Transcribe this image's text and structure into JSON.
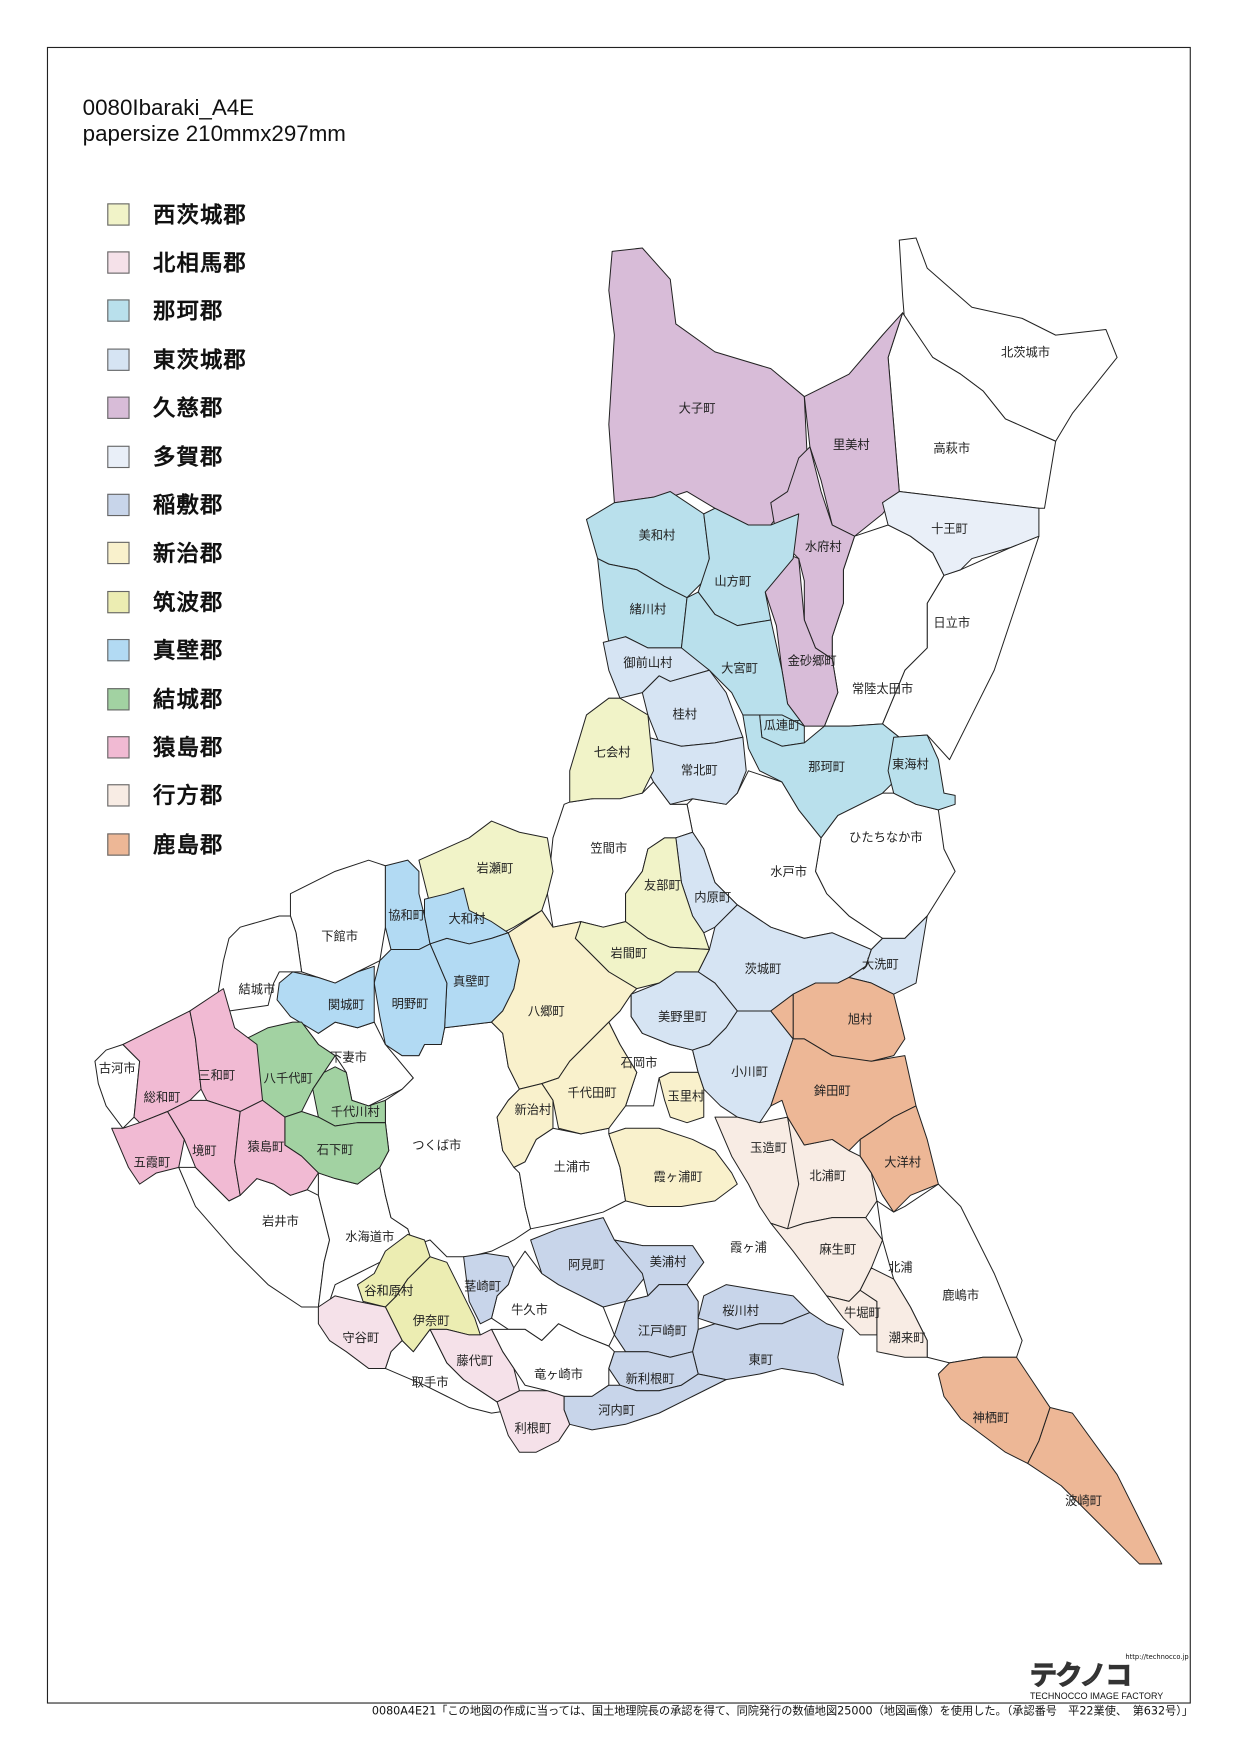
{
  "title": {
    "line1": "0080Ibaraki_A4E",
    "line2": "papersize 210mmx297mm"
  },
  "legend": [
    {
      "label": "西茨城郡",
      "color": "#f1f3c8"
    },
    {
      "label": "北相馬郡",
      "color": "#f5e1e9"
    },
    {
      "label": "那珂郡",
      "color": "#b9e0ec"
    },
    {
      "label": "東茨城郡",
      "color": "#d6e4f3"
    },
    {
      "label": "久慈郡",
      "color": "#d8bcd8"
    },
    {
      "label": "多賀郡",
      "color": "#e9eff8"
    },
    {
      "label": "稲敷郡",
      "color": "#c8d5ea"
    },
    {
      "label": "新治郡",
      "color": "#f9f1cc"
    },
    {
      "label": "筑波郡",
      "color": "#ecedb2"
    },
    {
      "label": "真壁郡",
      "color": "#b2daf3"
    },
    {
      "label": "結城郡",
      "color": "#a2d2a2"
    },
    {
      "label": "猿島郡",
      "color": "#f1bad3"
    },
    {
      "label": "行方郡",
      "color": "#f8ece4"
    },
    {
      "label": "鹿島郡",
      "color": "#edb796"
    }
  ],
  "map": {
    "city_color": "#ffffff",
    "municipalities": [
      {
        "name": "北茨城市",
        "district": ""
      },
      {
        "name": "高萩市",
        "district": ""
      },
      {
        "name": "日立市",
        "district": ""
      },
      {
        "name": "常陸太田市",
        "district": ""
      },
      {
        "name": "ひたちなか市",
        "district": ""
      },
      {
        "name": "水戸市",
        "district": ""
      },
      {
        "name": "笠間市",
        "district": ""
      },
      {
        "name": "下館市",
        "district": ""
      },
      {
        "name": "結城市",
        "district": ""
      },
      {
        "name": "下妻市",
        "district": ""
      },
      {
        "name": "古河市",
        "district": ""
      },
      {
        "name": "岩井市",
        "district": ""
      },
      {
        "name": "水海道市",
        "district": ""
      },
      {
        "name": "つくば市",
        "district": ""
      },
      {
        "name": "石岡市",
        "district": ""
      },
      {
        "name": "土浦市",
        "district": ""
      },
      {
        "name": "牛久市",
        "district": ""
      },
      {
        "name": "竜ヶ崎市",
        "district": ""
      },
      {
        "name": "取手市",
        "district": ""
      },
      {
        "name": "鹿嶋市",
        "district": ""
      },
      {
        "name": "大子町",
        "district": "久慈郡"
      },
      {
        "name": "里美村",
        "district": "久慈郡"
      },
      {
        "name": "水府村",
        "district": "久慈郡"
      },
      {
        "name": "金砂郷町",
        "district": "久慈郡"
      },
      {
        "name": "美和村",
        "district": "那珂郡"
      },
      {
        "name": "山方町",
        "district": "那珂郡"
      },
      {
        "name": "緒川村",
        "district": "那珂郡"
      },
      {
        "name": "大宮町",
        "district": "那珂郡"
      },
      {
        "name": "瓜連町",
        "district": "那珂郡"
      },
      {
        "name": "那珂町",
        "district": "那珂郡"
      },
      {
        "name": "東海村",
        "district": "那珂郡"
      },
      {
        "name": "十王町",
        "district": "多賀郡"
      },
      {
        "name": "御前山村",
        "district": "東茨城郡"
      },
      {
        "name": "桂村",
        "district": "東茨城郡"
      },
      {
        "name": "常北町",
        "district": "東茨城郡"
      },
      {
        "name": "内原町",
        "district": "東茨城郡"
      },
      {
        "name": "茨城町",
        "district": "東茨城郡"
      },
      {
        "name": "大洗町",
        "district": "東茨城郡"
      },
      {
        "name": "美野里町",
        "district": "東茨城郡"
      },
      {
        "name": "小川町",
        "district": "東茨城郡"
      },
      {
        "name": "七会村",
        "district": "西茨城郡"
      },
      {
        "name": "岩瀬町",
        "district": "西茨城郡"
      },
      {
        "name": "友部町",
        "district": "西茨城郡"
      },
      {
        "name": "岩間町",
        "district": "西茨城郡"
      },
      {
        "name": "協和町",
        "district": "真壁郡"
      },
      {
        "name": "大和村",
        "district": "真壁郡"
      },
      {
        "name": "真壁町",
        "district": "真壁郡"
      },
      {
        "name": "明野町",
        "district": "真壁郡"
      },
      {
        "name": "関城町",
        "district": "真壁郡"
      },
      {
        "name": "八郷町",
        "district": "新治郡"
      },
      {
        "name": "千代田町",
        "district": "新治郡"
      },
      {
        "name": "新治村",
        "district": "新治郡"
      },
      {
        "name": "玉里村",
        "district": "新治郡"
      },
      {
        "name": "霞ヶ浦町",
        "district": "新治郡"
      },
      {
        "name": "八千代町",
        "district": "結城郡"
      },
      {
        "name": "千代川村",
        "district": "結城郡"
      },
      {
        "name": "石下町",
        "district": "結城郡"
      },
      {
        "name": "総和町",
        "district": "猿島郡"
      },
      {
        "name": "三和町",
        "district": "猿島郡"
      },
      {
        "name": "五霞町",
        "district": "猿島郡"
      },
      {
        "name": "境町",
        "district": "猿島郡"
      },
      {
        "name": "猿島町",
        "district": "猿島郡"
      },
      {
        "name": "谷和原村",
        "district": "筑波郡"
      },
      {
        "name": "伊奈町",
        "district": "筑波郡"
      },
      {
        "name": "守谷町",
        "district": "北相馬郡"
      },
      {
        "name": "藤代町",
        "district": "北相馬郡"
      },
      {
        "name": "利根町",
        "district": "北相馬郡"
      },
      {
        "name": "茎崎町",
        "district": "稲敷郡"
      },
      {
        "name": "阿見町",
        "district": "稲敷郡"
      },
      {
        "name": "美浦村",
        "district": "稲敷郡"
      },
      {
        "name": "江戸崎町",
        "district": "稲敷郡"
      },
      {
        "name": "桜川村",
        "district": "稲敷郡"
      },
      {
        "name": "東町",
        "district": "稲敷郡"
      },
      {
        "name": "新利根町",
        "district": "稲敷郡"
      },
      {
        "name": "河内町",
        "district": "稲敷郡"
      },
      {
        "name": "玉造町",
        "district": "行方郡"
      },
      {
        "name": "北浦町",
        "district": "行方郡"
      },
      {
        "name": "麻生町",
        "district": "行方郡"
      },
      {
        "name": "牛堀町",
        "district": "行方郡"
      },
      {
        "name": "潮来町",
        "district": "行方郡"
      },
      {
        "name": "旭村",
        "district": "鹿島郡"
      },
      {
        "name": "鉾田町",
        "district": "鹿島郡"
      },
      {
        "name": "大洋村",
        "district": "鹿島郡"
      },
      {
        "name": "神栖町",
        "district": "鹿島郡"
      },
      {
        "name": "波崎町",
        "district": "鹿島郡"
      }
    ],
    "lakes": [
      {
        "name": "霞ヶ浦"
      },
      {
        "name": "北浦"
      }
    ]
  },
  "logo": {
    "url": "http://technocco.jp",
    "brand": "テクノコ",
    "tagline": "TECHNOCCO IMAGE FACTORY"
  },
  "footer": "0080A4E21「この地図の作成に当っては、国土地理院長の承認を得て、同院発行の数値地図25000（地図画像）を使用した。（承認番号　平22業使、　第632号）」"
}
